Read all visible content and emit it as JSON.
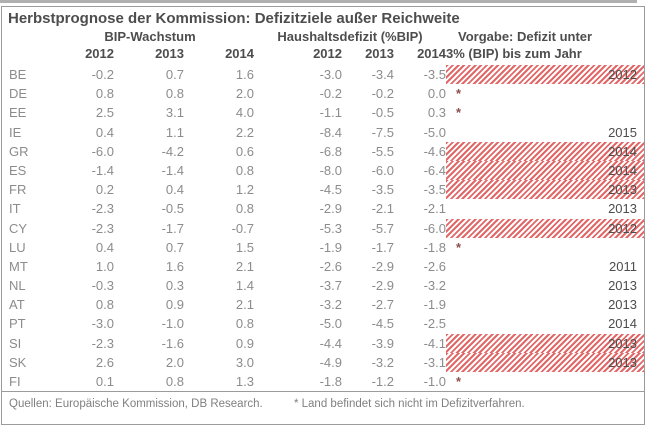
{
  "chart_data": {
    "type": "table",
    "title": "Herbstprognose der Kommission: Defizitziele außer Reichweite",
    "column_groups": [
      "BIP-Wachstum",
      "Haushaltsdefizit (%BIP)"
    ],
    "vorgabe_header_line1": "Vorgabe: Defizit unter",
    "vorgabe_header_line2": "3% (BIP) bis zum Jahr",
    "gdp_years": [
      "2012",
      "2013",
      "2014"
    ],
    "deficit_years": [
      "2012",
      "2013",
      "2014"
    ],
    "rows": [
      {
        "country": "BE",
        "gdp": [
          "-0.2",
          "0.7",
          "1.6"
        ],
        "deficit": [
          "-3.0",
          "-3.4",
          "-3.5"
        ],
        "target_year": "2012",
        "hatched": true,
        "asterisk": false
      },
      {
        "country": "DE",
        "gdp": [
          "0.8",
          "0.8",
          "2.0"
        ],
        "deficit": [
          "-0.2",
          "-0.2",
          "0.0"
        ],
        "target_year": "",
        "hatched": false,
        "asterisk": true
      },
      {
        "country": "EE",
        "gdp": [
          "2.5",
          "3.1",
          "4.0"
        ],
        "deficit": [
          "-1.1",
          "-0.5",
          "0.3"
        ],
        "target_year": "",
        "hatched": false,
        "asterisk": true
      },
      {
        "country": "IE",
        "gdp": [
          "0.4",
          "1.1",
          "2.2"
        ],
        "deficit": [
          "-8.4",
          "-7.5",
          "-5.0"
        ],
        "target_year": "2015",
        "hatched": false,
        "asterisk": false
      },
      {
        "country": "GR",
        "gdp": [
          "-6.0",
          "-4.2",
          "0.6"
        ],
        "deficit": [
          "-6.8",
          "-5.5",
          "-4.6"
        ],
        "target_year": "2014",
        "hatched": true,
        "asterisk": false
      },
      {
        "country": "ES",
        "gdp": [
          "-1.4",
          "-1.4",
          "0.8"
        ],
        "deficit": [
          "-8.0",
          "-6.0",
          "-6.4"
        ],
        "target_year": "2014",
        "hatched": true,
        "asterisk": false
      },
      {
        "country": "FR",
        "gdp": [
          "0.2",
          "0.4",
          "1.2"
        ],
        "deficit": [
          "-4.5",
          "-3.5",
          "-3.5"
        ],
        "target_year": "2013",
        "hatched": true,
        "asterisk": false
      },
      {
        "country": "IT",
        "gdp": [
          "-2.3",
          "-0.5",
          "0.8"
        ],
        "deficit": [
          "-2.9",
          "-2.1",
          "-2.1"
        ],
        "target_year": "2013",
        "hatched": false,
        "asterisk": false
      },
      {
        "country": "CY",
        "gdp": [
          "-2.3",
          "-1.7",
          "-0.7"
        ],
        "deficit": [
          "-5.3",
          "-5.7",
          "-6.0"
        ],
        "target_year": "2012",
        "hatched": true,
        "asterisk": false
      },
      {
        "country": "LU",
        "gdp": [
          "0.4",
          "0.7",
          "1.5"
        ],
        "deficit": [
          "-1.9",
          "-1.7",
          "-1.8"
        ],
        "target_year": "",
        "hatched": false,
        "asterisk": true
      },
      {
        "country": "MT",
        "gdp": [
          "1.0",
          "1.6",
          "2.1"
        ],
        "deficit": [
          "-2.6",
          "-2.9",
          "-2.6"
        ],
        "target_year": "2011",
        "hatched": false,
        "asterisk": false
      },
      {
        "country": "NL",
        "gdp": [
          "-0.3",
          "0.3",
          "1.4"
        ],
        "deficit": [
          "-3.7",
          "-2.9",
          "-3.2"
        ],
        "target_year": "2013",
        "hatched": false,
        "asterisk": false
      },
      {
        "country": "AT",
        "gdp": [
          "0.8",
          "0.9",
          "2.1"
        ],
        "deficit": [
          "-3.2",
          "-2.7",
          "-1.9"
        ],
        "target_year": "2013",
        "hatched": false,
        "asterisk": false
      },
      {
        "country": "PT",
        "gdp": [
          "-3.0",
          "-1.0",
          "0.8"
        ],
        "deficit": [
          "-5.0",
          "-4.5",
          "-2.5"
        ],
        "target_year": "2014",
        "hatched": false,
        "asterisk": false
      },
      {
        "country": "SI",
        "gdp": [
          "-2.3",
          "-1.6",
          "0.9"
        ],
        "deficit": [
          "-4.4",
          "-3.9",
          "-4.1"
        ],
        "target_year": "2013",
        "hatched": true,
        "asterisk": false
      },
      {
        "country": "SK",
        "gdp": [
          "2.6",
          "2.0",
          "3.0"
        ],
        "deficit": [
          "-4.9",
          "-3.2",
          "-3.1"
        ],
        "target_year": "2013",
        "hatched": true,
        "asterisk": false
      },
      {
        "country": "FI",
        "gdp": [
          "0.1",
          "0.8",
          "1.3"
        ],
        "deficit": [
          "-1.8",
          "-1.2",
          "-1.0"
        ],
        "target_year": "",
        "hatched": false,
        "asterisk": true
      }
    ]
  },
  "footer": {
    "source": "Quellen: Europäische Kommission, DB Research.",
    "note": "* Land befindet sich nicht im Defizitverfahren."
  },
  "colors": {
    "hatch_red": "#e26868",
    "header_text": "#4d4d4d",
    "data_text": "#8c8c8c",
    "border": "#9b9b9b",
    "asterisk_red": "#8b4f4f",
    "top_strip": "#b0b0b0"
  }
}
